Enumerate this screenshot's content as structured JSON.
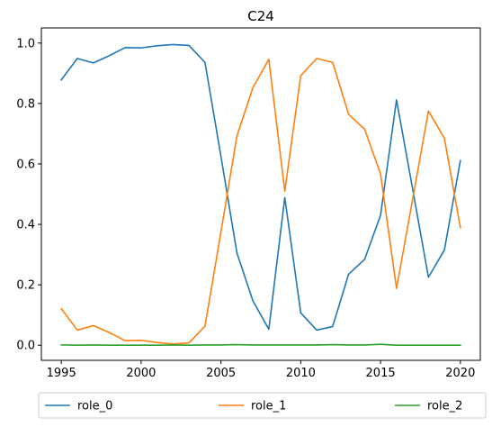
{
  "chart_data": {
    "type": "line",
    "title": "C24",
    "xlabel": "",
    "ylabel": "",
    "x": [
      1995,
      1996,
      1997,
      1998,
      1999,
      2000,
      2001,
      2002,
      2003,
      2004,
      2005,
      2006,
      2007,
      2008,
      2009,
      2010,
      2011,
      2012,
      2013,
      2014,
      2015,
      2016,
      2017,
      2018,
      2019,
      2020
    ],
    "xlim": [
      1993.75,
      2021.25
    ],
    "ylim": [
      -0.05,
      1.05
    ],
    "xticks": [
      1995,
      2000,
      2005,
      2010,
      2015,
      2020
    ],
    "xtick_labels": [
      "1995",
      "2000",
      "2005",
      "2010",
      "2015",
      "2020"
    ],
    "yticks": [
      0.0,
      0.2,
      0.4,
      0.6,
      0.8,
      1.0
    ],
    "ytick_labels": [
      "0.0",
      "0.2",
      "0.4",
      "0.6",
      "0.8",
      "1.0"
    ],
    "grid": false,
    "legend_position": "bottom",
    "series": [
      {
        "name": "role_0",
        "color": "#1f77b4",
        "values": [
          0.878,
          0.949,
          0.934,
          0.958,
          0.985,
          0.984,
          0.991,
          0.995,
          0.992,
          0.936,
          0.625,
          0.306,
          0.147,
          0.053,
          0.489,
          0.107,
          0.05,
          0.062,
          0.235,
          0.284,
          0.43,
          0.812,
          0.52,
          0.225,
          0.315,
          0.611
        ]
      },
      {
        "name": "role_1",
        "color": "#ff7f0e",
        "values": [
          0.121,
          0.05,
          0.065,
          0.042,
          0.015,
          0.016,
          0.009,
          0.004,
          0.008,
          0.063,
          0.375,
          0.692,
          0.852,
          0.946,
          0.51,
          0.892,
          0.949,
          0.936,
          0.764,
          0.715,
          0.567,
          0.188,
          0.48,
          0.775,
          0.685,
          0.389
        ]
      },
      {
        "name": "role_2",
        "color": "#2ca02c",
        "values": [
          0.001,
          0.0,
          0.001,
          0.0,
          0.0,
          0.0,
          0.0,
          0.001,
          0.0,
          0.001,
          0.001,
          0.002,
          0.001,
          0.001,
          0.001,
          0.001,
          0.001,
          0.002,
          0.001,
          0.001,
          0.003,
          0.0,
          0.0,
          0.0,
          0.0,
          0.0
        ]
      }
    ]
  }
}
